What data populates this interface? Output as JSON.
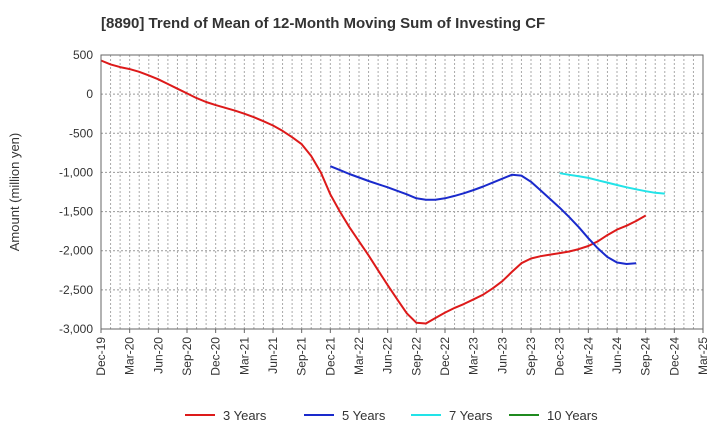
{
  "chart_data": {
    "type": "line",
    "title": "[8890]  Trend of Mean of 12-Month Moving Sum of Investing CF",
    "ylabel": "Amount (million yen)",
    "xlabel": "",
    "ylim": [
      -3000,
      500
    ],
    "yticks": [
      500,
      0,
      -500,
      -1000,
      -1500,
      -2000,
      -2500,
      -3000
    ],
    "ytick_labels": [
      "500",
      "0",
      "-500",
      "-1,000",
      "-1,500",
      "-2,000",
      "-2,500",
      "-3,000"
    ],
    "x_range_months": [
      0,
      63
    ],
    "xticks": [
      {
        "m": 0,
        "label": "Dec-19"
      },
      {
        "m": 3,
        "label": "Mar-20"
      },
      {
        "m": 6,
        "label": "Jun-20"
      },
      {
        "m": 9,
        "label": "Sep-20"
      },
      {
        "m": 12,
        "label": "Dec-20"
      },
      {
        "m": 15,
        "label": "Mar-21"
      },
      {
        "m": 18,
        "label": "Jun-21"
      },
      {
        "m": 21,
        "label": "Sep-21"
      },
      {
        "m": 24,
        "label": "Dec-21"
      },
      {
        "m": 27,
        "label": "Mar-22"
      },
      {
        "m": 30,
        "label": "Jun-22"
      },
      {
        "m": 33,
        "label": "Sep-22"
      },
      {
        "m": 36,
        "label": "Dec-22"
      },
      {
        "m": 39,
        "label": "Mar-23"
      },
      {
        "m": 42,
        "label": "Jun-23"
      },
      {
        "m": 45,
        "label": "Sep-23"
      },
      {
        "m": 48,
        "label": "Dec-23"
      },
      {
        "m": 51,
        "label": "Mar-24"
      },
      {
        "m": 54,
        "label": "Jun-24"
      },
      {
        "m": 57,
        "label": "Sep-24"
      },
      {
        "m": 60,
        "label": "Dec-24"
      },
      {
        "m": 63,
        "label": "Mar-25"
      }
    ],
    "legend_position": "bottom",
    "series": [
      {
        "name": "3 Years",
        "color": "#dd1a1a",
        "points": [
          [
            0,
            430
          ],
          [
            1,
            380
          ],
          [
            2,
            345
          ],
          [
            3,
            320
          ],
          [
            4,
            285
          ],
          [
            5,
            240
          ],
          [
            6,
            190
          ],
          [
            7,
            130
          ],
          [
            8,
            70
          ],
          [
            9,
            10
          ],
          [
            10,
            -50
          ],
          [
            11,
            -100
          ],
          [
            12,
            -140
          ],
          [
            13,
            -175
          ],
          [
            14,
            -210
          ],
          [
            15,
            -250
          ],
          [
            16,
            -295
          ],
          [
            17,
            -345
          ],
          [
            18,
            -400
          ],
          [
            19,
            -470
          ],
          [
            20,
            -550
          ],
          [
            21,
            -640
          ],
          [
            22,
            -790
          ],
          [
            23,
            -1000
          ],
          [
            24,
            -1280
          ],
          [
            25,
            -1500
          ],
          [
            26,
            -1700
          ],
          [
            27,
            -1880
          ],
          [
            28,
            -2060
          ],
          [
            29,
            -2250
          ],
          [
            30,
            -2440
          ],
          [
            31,
            -2620
          ],
          [
            32,
            -2800
          ],
          [
            33,
            -2920
          ],
          [
            34,
            -2930
          ],
          [
            35,
            -2860
          ],
          [
            36,
            -2790
          ],
          [
            37,
            -2730
          ],
          [
            38,
            -2680
          ],
          [
            39,
            -2620
          ],
          [
            40,
            -2560
          ],
          [
            41,
            -2480
          ],
          [
            42,
            -2390
          ],
          [
            43,
            -2270
          ],
          [
            44,
            -2160
          ],
          [
            45,
            -2100
          ],
          [
            46,
            -2070
          ],
          [
            47,
            -2050
          ],
          [
            48,
            -2030
          ],
          [
            49,
            -2010
          ],
          [
            50,
            -1980
          ],
          [
            51,
            -1940
          ],
          [
            52,
            -1880
          ],
          [
            53,
            -1800
          ],
          [
            54,
            -1730
          ],
          [
            55,
            -1680
          ],
          [
            56,
            -1620
          ],
          [
            57,
            -1550
          ]
        ]
      },
      {
        "name": "5 Years",
        "color": "#1a2acc",
        "points": [
          [
            24,
            -920
          ],
          [
            25,
            -970
          ],
          [
            26,
            -1020
          ],
          [
            27,
            -1065
          ],
          [
            28,
            -1110
          ],
          [
            29,
            -1150
          ],
          [
            30,
            -1190
          ],
          [
            31,
            -1235
          ],
          [
            32,
            -1280
          ],
          [
            33,
            -1330
          ],
          [
            34,
            -1350
          ],
          [
            35,
            -1350
          ],
          [
            36,
            -1330
          ],
          [
            37,
            -1300
          ],
          [
            38,
            -1265
          ],
          [
            39,
            -1225
          ],
          [
            40,
            -1180
          ],
          [
            41,
            -1130
          ],
          [
            42,
            -1080
          ],
          [
            43,
            -1030
          ],
          [
            44,
            -1040
          ],
          [
            45,
            -1120
          ],
          [
            46,
            -1230
          ],
          [
            47,
            -1340
          ],
          [
            48,
            -1450
          ],
          [
            49,
            -1570
          ],
          [
            50,
            -1700
          ],
          [
            51,
            -1840
          ],
          [
            52,
            -1970
          ],
          [
            53,
            -2080
          ],
          [
            54,
            -2150
          ],
          [
            55,
            -2170
          ],
          [
            56,
            -2160
          ]
        ]
      },
      {
        "name": "7 Years",
        "color": "#22e3e8",
        "points": [
          [
            48,
            -1010
          ],
          [
            49,
            -1030
          ],
          [
            50,
            -1050
          ],
          [
            51,
            -1070
          ],
          [
            52,
            -1100
          ],
          [
            53,
            -1130
          ],
          [
            54,
            -1160
          ],
          [
            55,
            -1190
          ],
          [
            56,
            -1215
          ],
          [
            57,
            -1240
          ],
          [
            58,
            -1260
          ],
          [
            59,
            -1270
          ]
        ]
      },
      {
        "name": "10 Years",
        "color": "#1f8a1f",
        "points": []
      }
    ]
  }
}
